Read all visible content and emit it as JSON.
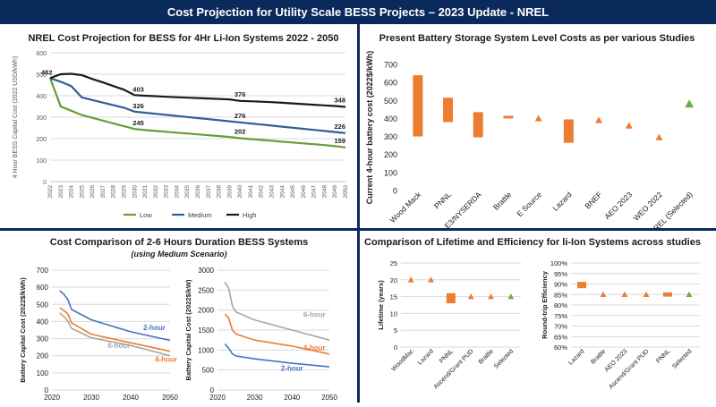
{
  "page_title": "Cost Projection for Utility Scale BESS Projects – 2023 Update - NREL",
  "colors": {
    "banner": "#0a2a5c",
    "green": "#6a9a3a",
    "blue": "#2f5f98",
    "black": "#1a1a1a",
    "orange": "#ed7d31",
    "navy": "#0a2a5c",
    "grid": "#d9d9d9",
    "gray": "#a6a6a6",
    "blue_light": "#4472c4",
    "green_marker": "#70ad47"
  },
  "chart_data": [
    {
      "id": "nrel",
      "type": "line",
      "title": "NREL Cost Projection for BESS for 4Hr Li-Ion Systems 2022 - 2050",
      "ylabel": "4 Hour BESS Capital Cost (2022 USD/kWh)",
      "xlabel": "",
      "ylim": [
        0,
        600
      ],
      "yticks": [
        "0",
        "100",
        "200",
        "300",
        "400",
        "500",
        "600"
      ],
      "x": [
        "2022",
        "2023",
        "2024",
        "2025",
        "2026",
        "2027",
        "2028",
        "2029",
        "2030",
        "2031",
        "2032",
        "2033",
        "2034",
        "2035",
        "2036",
        "2037",
        "2038",
        "2039",
        "2040",
        "2041",
        "2042",
        "2043",
        "2044",
        "2045",
        "2046",
        "2047",
        "2048",
        "2049",
        "2050"
      ],
      "series": [
        {
          "name": "Low",
          "values": [
            482,
            350,
            330,
            310,
            297,
            284,
            271,
            258,
            245,
            240,
            236,
            232,
            228,
            224,
            220,
            216,
            212,
            208,
            202,
            198,
            194,
            190,
            186,
            182,
            178,
            174,
            170,
            165,
            159
          ]
        },
        {
          "name": "Medium",
          "values": [
            482,
            465,
            445,
            392,
            380,
            368,
            356,
            344,
            326,
            321,
            316,
            311,
            306,
            301,
            296,
            291,
            286,
            281,
            276,
            271,
            266,
            261,
            256,
            251,
            246,
            241,
            236,
            231,
            226
          ]
        },
        {
          "name": "High",
          "values": [
            482,
            500,
            502,
            496,
            478,
            462,
            445,
            428,
            403,
            400,
            398,
            395,
            393,
            391,
            389,
            387,
            385,
            383,
            376,
            374,
            372,
            370,
            367,
            364,
            361,
            358,
            355,
            352,
            348
          ]
        }
      ],
      "annotations": [
        "482",
        "403",
        "326",
        "245",
        "376",
        "276",
        "202",
        "348",
        "226",
        "159"
      ],
      "legend": [
        "Low",
        "Medium",
        "High"
      ]
    },
    {
      "id": "studies",
      "type": "bar",
      "title": "Present Battery Storage System Level Costs as per various Studies",
      "ylabel": "Current 4-hour battery cost (2022$/kWh)",
      "ylim": [
        0,
        700
      ],
      "yticks": [
        "0",
        "100",
        "200",
        "300",
        "400",
        "500",
        "600",
        "700"
      ],
      "categories": [
        "Wood Mack",
        "PNNL",
        "E3/NYSERDA",
        "Brattle",
        "E Source",
        "Lazard",
        "BNEF",
        "AEO 2023",
        "WEO 2022",
        "NREL (Selected)"
      ],
      "ranges": [
        [
          300,
          640
        ],
        [
          380,
          515
        ],
        [
          295,
          435
        ],
        [
          400,
          415
        ],
        null,
        [
          265,
          395
        ],
        null,
        null,
        null,
        null
      ],
      "points": [
        null,
        null,
        null,
        null,
        400,
        null,
        390,
        360,
        295,
        480
      ]
    },
    {
      "id": "medium",
      "type": "line",
      "title": "Cost Comparison of 2-6 Hours Duration BESS Systems",
      "subtitle": "(using Medium Scenario)",
      "ylabel": "Battery Capital Cost (2022$/kWh)",
      "ylim": [
        0,
        700
      ],
      "yticks": [
        "0",
        "100",
        "200",
        "300",
        "400",
        "500",
        "600",
        "700"
      ],
      "xticks": [
        "2020",
        "2030",
        "2040",
        "2050"
      ],
      "series": [
        {
          "name": "2-hour",
          "x": [
            2022,
            2023,
            2024,
            2025,
            2030,
            2040,
            2050
          ],
          "values": [
            580,
            560,
            530,
            470,
            410,
            340,
            290
          ]
        },
        {
          "name": "4-hour",
          "x": [
            2022,
            2023,
            2024,
            2025,
            2030,
            2040,
            2050
          ],
          "values": [
            480,
            465,
            445,
            392,
            326,
            276,
            226
          ]
        },
        {
          "name": "6-hour",
          "x": [
            2022,
            2023,
            2024,
            2025,
            2030,
            2040,
            2050
          ],
          "values": [
            450,
            430,
            405,
            360,
            305,
            260,
            200
          ]
        }
      ],
      "labels": [
        "2-hour",
        "6-hour",
        "4-hour"
      ]
    },
    {
      "id": "total",
      "type": "line",
      "ylabel": "Battery Capital Cost (2022$/kW)",
      "ylim": [
        0,
        3000
      ],
      "yticks": [
        "0",
        "500",
        "1000",
        "1500",
        "2000",
        "2500",
        "3000"
      ],
      "xticks": [
        "2020",
        "2030",
        "2040",
        "2050"
      ],
      "series": [
        {
          "name": "6-hour",
          "x": [
            2022,
            2023,
            2024,
            2025,
            2030,
            2040,
            2050
          ],
          "values": [
            2700,
            2550,
            2100,
            1950,
            1750,
            1500,
            1250
          ]
        },
        {
          "name": "4-hour",
          "x": [
            2022,
            2023,
            2024,
            2025,
            2030,
            2040,
            2050
          ],
          "values": [
            1900,
            1800,
            1500,
            1400,
            1250,
            1100,
            900
          ]
        },
        {
          "name": "2-hour",
          "x": [
            2022,
            2023,
            2024,
            2025,
            2030,
            2040,
            2050
          ],
          "values": [
            1150,
            1050,
            900,
            850,
            780,
            670,
            580
          ]
        }
      ],
      "labels": [
        "6-hour",
        "4-hour",
        "2-hour"
      ]
    },
    {
      "id": "lifetime",
      "type": "bar",
      "title": "Comparison of Lifetime and Efficiency for li-Ion Systems across studies",
      "ylabel": "Lifetime (years)",
      "ylim": [
        0,
        25
      ],
      "yticks": [
        "0",
        "5",
        "10",
        "15",
        "20",
        "25"
      ],
      "categories": [
        "WoodMac",
        "Lazard",
        "PNNL",
        "Ascend/Grant PUD",
        "Brattle",
        "Selected"
      ],
      "ranges": [
        null,
        null,
        [
          13,
          16
        ],
        null,
        null,
        null
      ],
      "points": [
        20,
        20,
        null,
        15,
        15,
        15
      ]
    },
    {
      "id": "efficiency",
      "type": "bar",
      "ylabel": "Round-trip Efficiency",
      "ylim": [
        60,
        100
      ],
      "yticks": [
        "60%",
        "65%",
        "70%",
        "75%",
        "80%",
        "85%",
        "90%",
        "95%",
        "100%"
      ],
      "categories": [
        "Lazard",
        "Brattle",
        "AEO 2023",
        "Ascend/Grant PUD",
        "PNNL",
        "Selected"
      ],
      "ranges": [
        [
          88,
          91
        ],
        null,
        null,
        null,
        [
          84,
          86
        ],
        null
      ],
      "points": [
        null,
        85,
        85,
        85,
        null,
        85
      ]
    }
  ]
}
